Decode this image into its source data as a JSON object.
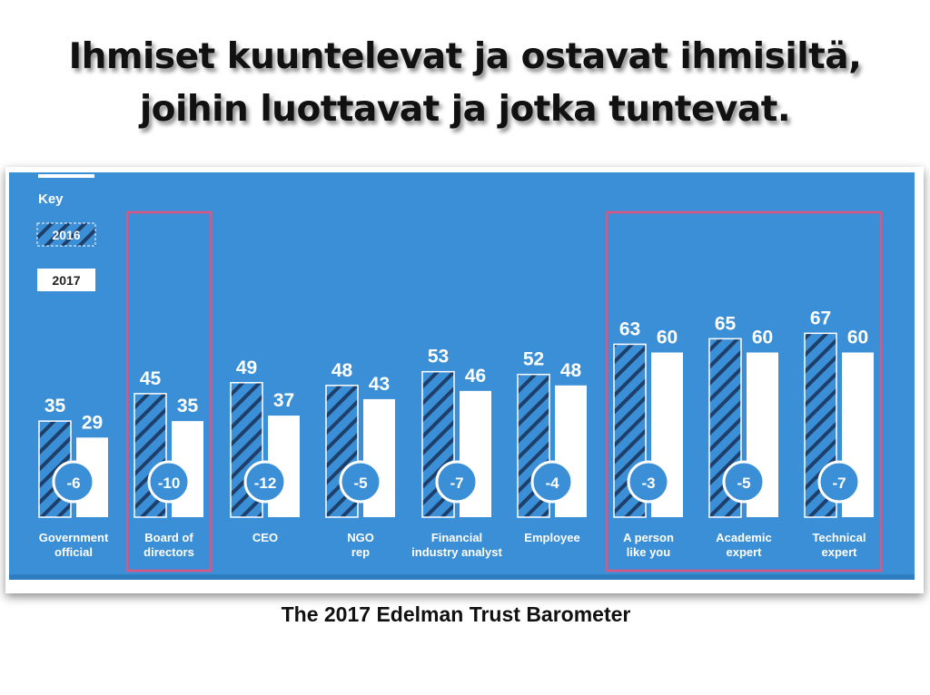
{
  "slide": {
    "title_line1": "Ihmiset kuuntelevat ja ostavat ihmisiltä,",
    "title_line2": "joihin luottavat ja jotka tuntevat.",
    "caption": "The 2017 Edelman Trust Barometer"
  },
  "colors": {
    "panel_background": "#3b8fd6",
    "bar_2016_fill": "#3b8fd6",
    "bar_2016_hatch": "#1f3f6b",
    "bar_2017_fill": "#ffffff",
    "highlight_box": "#e0557f",
    "value_text": "#ffffff",
    "diff_circle": "#3b8fd6"
  },
  "chart_data": {
    "type": "bar",
    "key_title": "Key",
    "categories": [
      [
        "Government",
        "official"
      ],
      [
        "Board of",
        "directors"
      ],
      [
        "CEO"
      ],
      [
        "NGO",
        "rep"
      ],
      [
        "Financial",
        "industry analyst"
      ],
      [
        "Employee"
      ],
      [
        "A person",
        "like you"
      ],
      [
        "Academic",
        "expert"
      ],
      [
        "Technical",
        "expert"
      ]
    ],
    "series": [
      {
        "name": "2016",
        "style": "hatched",
        "values": [
          35,
          45,
          49,
          48,
          53,
          52,
          63,
          65,
          67
        ]
      },
      {
        "name": "2017",
        "style": "solid-white",
        "values": [
          29,
          35,
          37,
          43,
          46,
          48,
          60,
          60,
          60
        ]
      }
    ],
    "differences": [
      "-6",
      "-10",
      "-12",
      "-5",
      "-7",
      "-4",
      "-3",
      "-5",
      "-7"
    ],
    "highlighted_categories": [
      1,
      6,
      7,
      8
    ],
    "ylim": [
      0,
      100
    ],
    "xlabel": "",
    "ylabel": "",
    "grid": false,
    "legend_placement": "top-left"
  }
}
